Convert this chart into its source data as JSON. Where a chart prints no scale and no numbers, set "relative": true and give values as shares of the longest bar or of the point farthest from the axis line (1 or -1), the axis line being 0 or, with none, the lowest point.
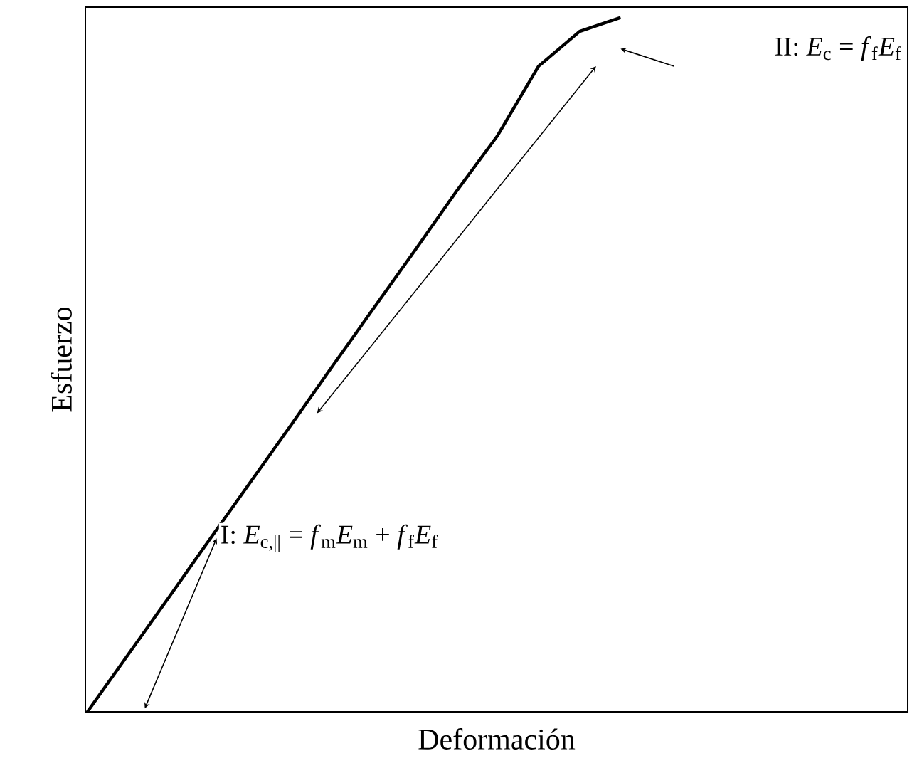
{
  "chart_data": {
    "type": "line",
    "relative": true,
    "xlabel": "Deformación",
    "ylabel": "Esfuerzo",
    "categories": [
      null,
      null,
      null,
      null,
      null,
      null,
      null,
      null,
      null,
      null,
      null,
      null,
      null,
      null,
      null,
      null,
      null,
      null,
      null,
      null,
      null
    ],
    "series": [
      {
        "color": "#000000",
        "values": [
          0,
          0.083,
          0.166,
          0.25,
          0.333,
          0.416,
          0.5,
          0.583,
          0.666,
          0.75,
          0.83,
          0.93,
          0.98,
          1.0,
          null,
          null,
          null,
          null,
          null,
          null,
          null
        ]
      }
    ],
    "annotations": [
      "I: *E*$_{c,||}$ = *f*$_{m}$*E*$_{m}$ + *f*$_{f}$*E*$_{f}$",
      "II: *E*$_{c}$ = *f*$_{f}$*E*$_{f}$"
    ]
  }
}
